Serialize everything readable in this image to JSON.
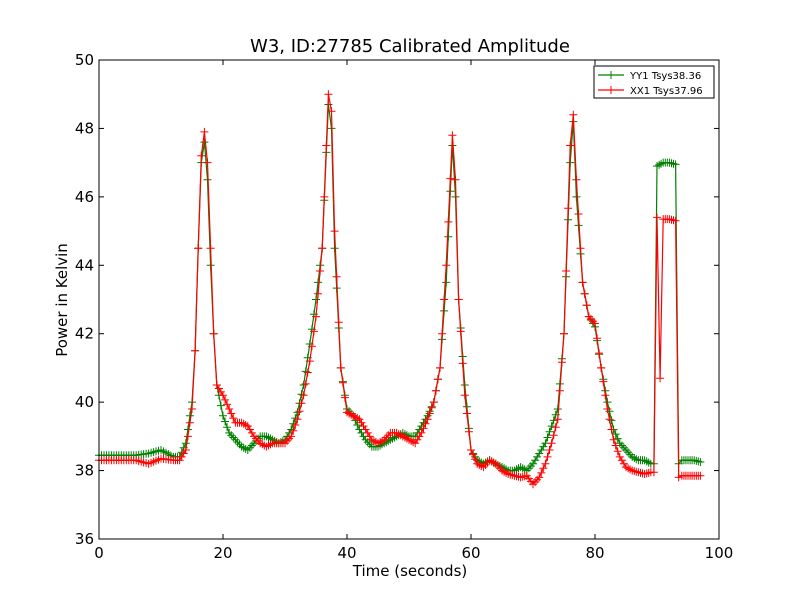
{
  "chart_data": {
    "type": "line",
    "title": "W3, ID:27785 Calibrated Amplitude",
    "xlabel": "Time (seconds)",
    "ylabel": "Power in Kelvin",
    "xlim": [
      0,
      100
    ],
    "ylim": [
      36,
      50
    ],
    "xticks": [
      0,
      20,
      40,
      60,
      80,
      100
    ],
    "yticks": [
      36,
      38,
      40,
      42,
      44,
      46,
      48,
      50
    ],
    "xtick_labels": [
      "0",
      "20",
      "40",
      "60",
      "80",
      "100"
    ],
    "ytick_labels": [
      "36",
      "38",
      "40",
      "42",
      "44",
      "46",
      "48",
      "50"
    ],
    "grid": false,
    "legend": "top-right",
    "marker": "+",
    "series": [
      {
        "name": "YY1 Tsys38.36",
        "color": "#008000",
        "points": [
          [
            0,
            38.45
          ],
          [
            2,
            38.45
          ],
          [
            4,
            38.45
          ],
          [
            6,
            38.45
          ],
          [
            8,
            38.5
          ],
          [
            10,
            38.6
          ],
          [
            12,
            38.4
          ],
          [
            13,
            38.4
          ],
          [
            14,
            38.8
          ],
          [
            15,
            40.0
          ],
          [
            15.5,
            41.5
          ],
          [
            16,
            44.5
          ],
          [
            16.5,
            47.0
          ],
          [
            17,
            47.6
          ],
          [
            17.5,
            46.5
          ],
          [
            18,
            44.0
          ],
          [
            18.5,
            42.0
          ],
          [
            19,
            40.5
          ],
          [
            20,
            39.6
          ],
          [
            21,
            39.1
          ],
          [
            22,
            38.9
          ],
          [
            23,
            38.7
          ],
          [
            24,
            38.6
          ],
          [
            25,
            38.8
          ],
          [
            26,
            39.0
          ],
          [
            27,
            39.0
          ],
          [
            28,
            38.9
          ],
          [
            29,
            38.8
          ],
          [
            30,
            38.9
          ],
          [
            31,
            39.2
          ],
          [
            32,
            39.7
          ],
          [
            33,
            40.5
          ],
          [
            34,
            41.7
          ],
          [
            35,
            43.0
          ],
          [
            36,
            44.5
          ],
          [
            37,
            48.7
          ],
          [
            37.5,
            48.0
          ],
          [
            38,
            44.5
          ],
          [
            39,
            41.0
          ],
          [
            40,
            39.8
          ],
          [
            41,
            39.6
          ],
          [
            42,
            39.2
          ],
          [
            43,
            38.9
          ],
          [
            44,
            38.7
          ],
          [
            45,
            38.7
          ],
          [
            46,
            38.8
          ],
          [
            47,
            38.9
          ],
          [
            48,
            39.0
          ],
          [
            49,
            39.1
          ],
          [
            50,
            39.0
          ],
          [
            51,
            39.0
          ],
          [
            52,
            39.3
          ],
          [
            53,
            39.6
          ],
          [
            54,
            40.0
          ],
          [
            55,
            41.0
          ],
          [
            56,
            43.5
          ],
          [
            57,
            47.5
          ],
          [
            57.5,
            46.0
          ],
          [
            58,
            43.0
          ],
          [
            59,
            40.5
          ],
          [
            60,
            38.6
          ],
          [
            61,
            38.3
          ],
          [
            62,
            38.2
          ],
          [
            63,
            38.3
          ],
          [
            64,
            38.2
          ],
          [
            65,
            38.1
          ],
          [
            66,
            38.0
          ],
          [
            67,
            38.0
          ],
          [
            68,
            38.1
          ],
          [
            69,
            38.0
          ],
          [
            70,
            38.2
          ],
          [
            71,
            38.5
          ],
          [
            72,
            38.8
          ],
          [
            73,
            39.3
          ],
          [
            74,
            39.8
          ],
          [
            75,
            42.0
          ],
          [
            76,
            47.0
          ],
          [
            76.5,
            48.2
          ],
          [
            77,
            46.0
          ],
          [
            78,
            43.5
          ],
          [
            79,
            42.5
          ],
          [
            80,
            42.2
          ],
          [
            81,
            41.0
          ],
          [
            82,
            40.0
          ],
          [
            83,
            39.2
          ],
          [
            84,
            38.8
          ],
          [
            85,
            38.6
          ],
          [
            86,
            38.4
          ],
          [
            87,
            38.3
          ],
          [
            88,
            38.3
          ],
          [
            89,
            38.2
          ],
          [
            89.5,
            38.2
          ],
          [
            90,
            46.9
          ],
          [
            91,
            47.0
          ],
          [
            92,
            47.0
          ],
          [
            93,
            46.95
          ],
          [
            93.5,
            38.2
          ],
          [
            94,
            38.3
          ],
          [
            95,
            38.3
          ],
          [
            96,
            38.3
          ],
          [
            97,
            38.25
          ]
        ]
      },
      {
        "name": "XX1 Tsys37.96",
        "color": "#ff0000",
        "points": [
          [
            0,
            38.3
          ],
          [
            2,
            38.3
          ],
          [
            4,
            38.3
          ],
          [
            6,
            38.3
          ],
          [
            8,
            38.2
          ],
          [
            10,
            38.35
          ],
          [
            12,
            38.3
          ],
          [
            13,
            38.3
          ],
          [
            14,
            38.6
          ],
          [
            15,
            39.8
          ],
          [
            15.5,
            41.5
          ],
          [
            16,
            44.5
          ],
          [
            16.5,
            47.2
          ],
          [
            17,
            47.9
          ],
          [
            17.5,
            47.0
          ],
          [
            18,
            44.5
          ],
          [
            18.5,
            42.0
          ],
          [
            19,
            40.5
          ],
          [
            20,
            40.2
          ],
          [
            21,
            39.8
          ],
          [
            22,
            39.4
          ],
          [
            23,
            39.4
          ],
          [
            24,
            39.3
          ],
          [
            25,
            39.0
          ],
          [
            26,
            38.8
          ],
          [
            27,
            38.7
          ],
          [
            28,
            38.8
          ],
          [
            29,
            38.8
          ],
          [
            30,
            38.8
          ],
          [
            31,
            39.0
          ],
          [
            32,
            39.5
          ],
          [
            33,
            40.2
          ],
          [
            34,
            41.2
          ],
          [
            35,
            42.5
          ],
          [
            36,
            44.5
          ],
          [
            37,
            49.0
          ],
          [
            37.5,
            48.5
          ],
          [
            38,
            45.0
          ],
          [
            39,
            41.0
          ],
          [
            40,
            39.7
          ],
          [
            41,
            39.6
          ],
          [
            42,
            39.5
          ],
          [
            43,
            39.2
          ],
          [
            44,
            38.9
          ],
          [
            45,
            38.8
          ],
          [
            46,
            38.9
          ],
          [
            47,
            39.1
          ],
          [
            48,
            39.1
          ],
          [
            49,
            39.0
          ],
          [
            50,
            38.9
          ],
          [
            51,
            38.8
          ],
          [
            52,
            39.1
          ],
          [
            53,
            39.5
          ],
          [
            54,
            40.0
          ],
          [
            55,
            41.0
          ],
          [
            56,
            44.0
          ],
          [
            57,
            47.8
          ],
          [
            57.5,
            46.5
          ],
          [
            58,
            43.0
          ],
          [
            59,
            40.2
          ],
          [
            60,
            38.6
          ],
          [
            61,
            38.2
          ],
          [
            62,
            38.1
          ],
          [
            63,
            38.3
          ],
          [
            64,
            38.2
          ],
          [
            65,
            38.0
          ],
          [
            66,
            37.9
          ],
          [
            67,
            37.85
          ],
          [
            68,
            37.8
          ],
          [
            69,
            37.85
          ],
          [
            70,
            37.6
          ],
          [
            71,
            37.8
          ],
          [
            72,
            38.2
          ],
          [
            73,
            38.8
          ],
          [
            74,
            39.5
          ],
          [
            75,
            42.0
          ],
          [
            76,
            47.5
          ],
          [
            76.5,
            48.4
          ],
          [
            77,
            46.5
          ],
          [
            78,
            43.5
          ],
          [
            79,
            42.5
          ],
          [
            80,
            42.3
          ],
          [
            81,
            41.0
          ],
          [
            82,
            39.8
          ],
          [
            83,
            38.9
          ],
          [
            84,
            38.4
          ],
          [
            85,
            38.1
          ],
          [
            86,
            38.0
          ],
          [
            87,
            37.95
          ],
          [
            88,
            37.9
          ],
          [
            89,
            37.95
          ],
          [
            89.5,
            37.95
          ],
          [
            90,
            45.4
          ],
          [
            90.5,
            40.7
          ],
          [
            91,
            45.35
          ],
          [
            92,
            45.35
          ],
          [
            93,
            45.3
          ],
          [
            93.5,
            37.8
          ],
          [
            94,
            37.85
          ],
          [
            95,
            37.85
          ],
          [
            96,
            37.85
          ],
          [
            97,
            37.85
          ]
        ]
      }
    ]
  }
}
